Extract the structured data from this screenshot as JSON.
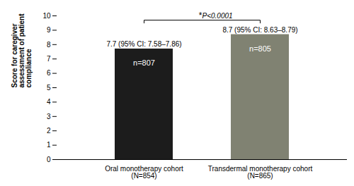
{
  "chart_data": {
    "type": "bar",
    "categories": [
      "Oral monotherapy cohort\n(N=854)",
      "Transdermal monotherapy cohort\n(N=865)"
    ],
    "values": [
      7.7,
      8.7
    ],
    "colors": [
      "#1c1c1c",
      "#808272"
    ],
    "value_labels": [
      "7.7 (95% CI: 7.58–7.86)",
      "8.7 (95% CI: 8.63–8.79)"
    ],
    "bar_labels": [
      "n=807",
      "n=805"
    ],
    "data_labels": true,
    "ylabel": "Score for caregiver\nassessment of patient\ncompliance",
    "ylim": [
      0,
      10
    ],
    "yticks": [
      0,
      1,
      2,
      3,
      4,
      5,
      6,
      7,
      8,
      9,
      10
    ],
    "annotations": [
      "*",
      "P<0.0001"
    ],
    "grid": false
  }
}
